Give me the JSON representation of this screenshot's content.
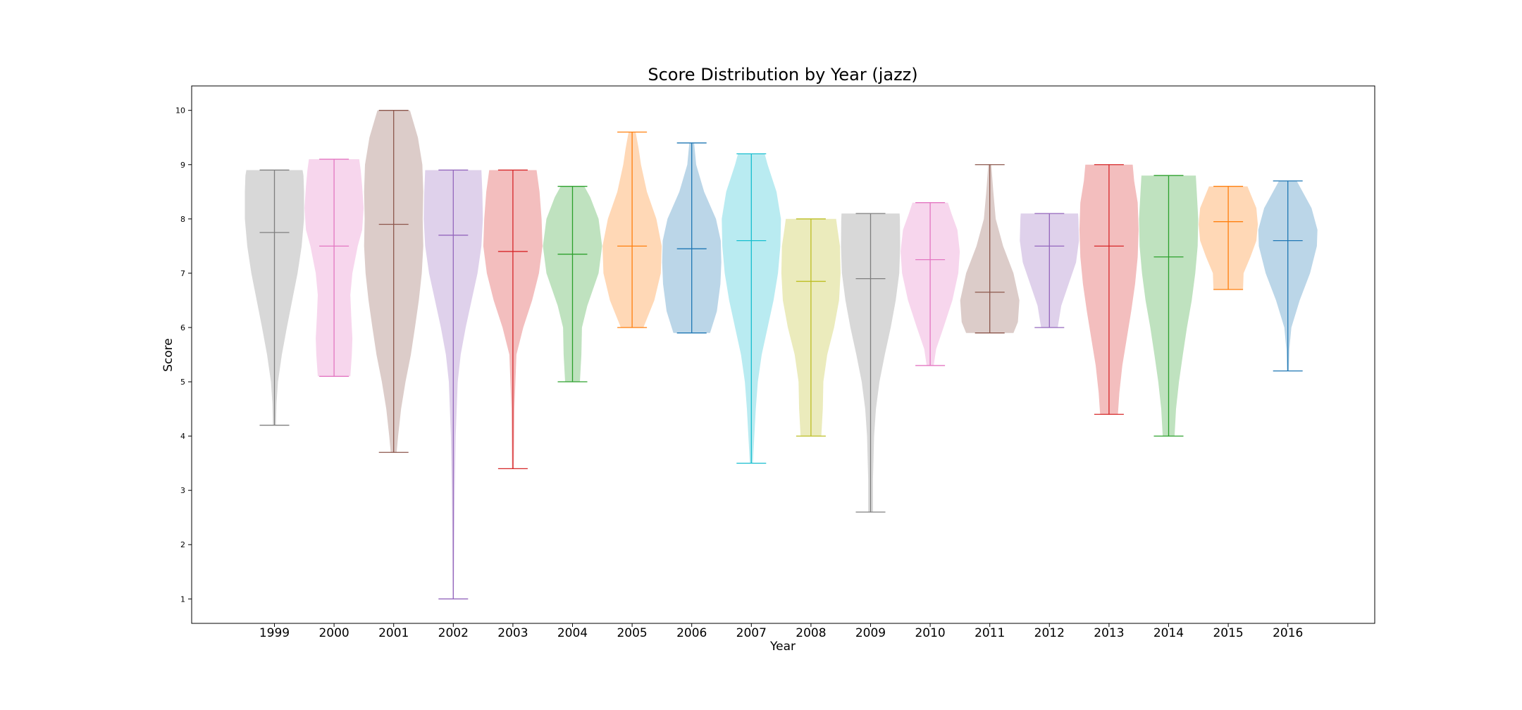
{
  "chart_data": {
    "type": "violin",
    "title": "Score Distribution by Year (jazz)",
    "xlabel": "Year",
    "ylabel": "Score",
    "ylim": [
      0.55,
      10.45
    ],
    "yticks": [
      "1",
      "2",
      "3",
      "4",
      "5",
      "6",
      "7",
      "8",
      "9",
      "10"
    ],
    "grid": false,
    "legend": "none",
    "categories": [
      "1999",
      "2000",
      "2001",
      "2002",
      "2003",
      "2004",
      "2005",
      "2006",
      "2007",
      "2008",
      "2009",
      "2010",
      "2011",
      "2012",
      "2013",
      "2014",
      "2015",
      "2016"
    ],
    "series": [
      {
        "year": "1999",
        "color": "#7f7f7f",
        "min": 4.2,
        "max": 8.9,
        "median": 7.75,
        "shape": [
          [
            4.2,
            0.05
          ],
          [
            4.6,
            0.07
          ],
          [
            5.0,
            0.12
          ],
          [
            5.5,
            0.25
          ],
          [
            6.0,
            0.42
          ],
          [
            6.5,
            0.6
          ],
          [
            7.0,
            0.78
          ],
          [
            7.5,
            0.92
          ],
          [
            8.0,
            1.0
          ],
          [
            8.5,
            1.0
          ],
          [
            8.8,
            0.98
          ],
          [
            8.9,
            0.95
          ]
        ]
      },
      {
        "year": "2000",
        "color": "#e377c2",
        "min": 5.1,
        "max": 9.1,
        "median": 7.5,
        "shape": [
          [
            5.1,
            0.55
          ],
          [
            5.5,
            0.6
          ],
          [
            5.8,
            0.62
          ],
          [
            6.2,
            0.58
          ],
          [
            6.6,
            0.55
          ],
          [
            7.0,
            0.62
          ],
          [
            7.5,
            0.8
          ],
          [
            7.8,
            0.95
          ],
          [
            8.2,
            1.0
          ],
          [
            8.6,
            0.95
          ],
          [
            8.9,
            0.9
          ],
          [
            9.1,
            0.85
          ]
        ]
      },
      {
        "year": "2001",
        "color": "#8c564b",
        "min": 3.7,
        "max": 10.0,
        "median": 7.9,
        "shape": [
          [
            3.7,
            0.1
          ],
          [
            4.0,
            0.15
          ],
          [
            4.5,
            0.25
          ],
          [
            5.0,
            0.4
          ],
          [
            5.5,
            0.58
          ],
          [
            6.0,
            0.72
          ],
          [
            6.5,
            0.85
          ],
          [
            7.0,
            0.95
          ],
          [
            7.5,
            1.0
          ],
          [
            8.0,
            0.98
          ],
          [
            8.5,
            1.0
          ],
          [
            9.0,
            0.97
          ],
          [
            9.5,
            0.82
          ],
          [
            10.0,
            0.55
          ]
        ]
      },
      {
        "year": "2002",
        "color": "#9467bd",
        "min": 1.0,
        "max": 8.9,
        "median": 7.7,
        "shape": [
          [
            1.0,
            0.02
          ],
          [
            2.0,
            0.03
          ],
          [
            3.0,
            0.05
          ],
          [
            4.0,
            0.08
          ],
          [
            5.0,
            0.15
          ],
          [
            5.5,
            0.25
          ],
          [
            6.0,
            0.42
          ],
          [
            6.5,
            0.62
          ],
          [
            7.0,
            0.82
          ],
          [
            7.5,
            0.95
          ],
          [
            8.0,
            1.0
          ],
          [
            8.5,
            0.98
          ],
          [
            8.9,
            0.95
          ]
        ]
      },
      {
        "year": "2003",
        "color": "#d62728",
        "min": 3.4,
        "max": 8.9,
        "median": 7.4,
        "shape": [
          [
            3.4,
            0.03
          ],
          [
            4.5,
            0.05
          ],
          [
            5.5,
            0.12
          ],
          [
            6.0,
            0.35
          ],
          [
            6.5,
            0.65
          ],
          [
            7.0,
            0.88
          ],
          [
            7.5,
            1.0
          ],
          [
            8.0,
            0.97
          ],
          [
            8.5,
            0.9
          ],
          [
            8.9,
            0.8
          ]
        ]
      },
      {
        "year": "2004",
        "color": "#2ca02c",
        "min": 5.0,
        "max": 8.6,
        "median": 7.35,
        "shape": [
          [
            5.0,
            0.25
          ],
          [
            5.5,
            0.3
          ],
          [
            6.0,
            0.32
          ],
          [
            6.4,
            0.5
          ],
          [
            7.0,
            0.88
          ],
          [
            7.5,
            1.0
          ],
          [
            8.0,
            0.88
          ],
          [
            8.4,
            0.6
          ],
          [
            8.6,
            0.4
          ]
        ]
      },
      {
        "year": "2005",
        "color": "#ff7f0e",
        "min": 6.0,
        "max": 9.6,
        "median": 7.5,
        "shape": [
          [
            6.0,
            0.38
          ],
          [
            6.5,
            0.75
          ],
          [
            7.0,
            0.97
          ],
          [
            7.5,
            1.0
          ],
          [
            8.0,
            0.82
          ],
          [
            8.5,
            0.5
          ],
          [
            9.0,
            0.3
          ],
          [
            9.3,
            0.22
          ],
          [
            9.6,
            0.12
          ]
        ]
      },
      {
        "year": "2006",
        "color": "#1f77b4",
        "min": 5.9,
        "max": 9.4,
        "median": 7.45,
        "shape": [
          [
            5.9,
            0.62
          ],
          [
            6.3,
            0.85
          ],
          [
            6.8,
            0.97
          ],
          [
            7.2,
            1.0
          ],
          [
            7.6,
            0.98
          ],
          [
            8.0,
            0.82
          ],
          [
            8.5,
            0.42
          ],
          [
            9.0,
            0.15
          ],
          [
            9.4,
            0.08
          ]
        ]
      },
      {
        "year": "2007",
        "color": "#17becf",
        "min": 3.5,
        "max": 9.2,
        "median": 7.6,
        "shape": [
          [
            3.5,
            0.05
          ],
          [
            4.0,
            0.1
          ],
          [
            4.5,
            0.15
          ],
          [
            5.0,
            0.22
          ],
          [
            5.5,
            0.35
          ],
          [
            6.0,
            0.55
          ],
          [
            6.5,
            0.75
          ],
          [
            7.0,
            0.9
          ],
          [
            7.5,
            0.98
          ],
          [
            8.0,
            1.0
          ],
          [
            8.5,
            0.85
          ],
          [
            9.0,
            0.55
          ],
          [
            9.2,
            0.45
          ]
        ]
      },
      {
        "year": "2008",
        "color": "#bcbd22",
        "min": 4.0,
        "max": 8.0,
        "median": 6.85,
        "shape": [
          [
            4.0,
            0.35
          ],
          [
            4.5,
            0.4
          ],
          [
            5.0,
            0.42
          ],
          [
            5.5,
            0.55
          ],
          [
            6.0,
            0.78
          ],
          [
            6.5,
            0.95
          ],
          [
            7.0,
            1.0
          ],
          [
            7.5,
            0.98
          ],
          [
            7.8,
            0.9
          ],
          [
            8.0,
            0.85
          ]
        ]
      },
      {
        "year": "2009",
        "color": "#7f7f7f",
        "min": 2.6,
        "max": 8.1,
        "median": 6.9,
        "shape": [
          [
            2.6,
            0.08
          ],
          [
            3.2,
            0.08
          ],
          [
            4.0,
            0.12
          ],
          [
            4.5,
            0.18
          ],
          [
            5.0,
            0.3
          ],
          [
            5.5,
            0.48
          ],
          [
            6.0,
            0.68
          ],
          [
            6.5,
            0.85
          ],
          [
            7.0,
            0.97
          ],
          [
            7.5,
            1.0
          ],
          [
            8.0,
            0.99
          ],
          [
            8.1,
            0.98
          ]
        ]
      },
      {
        "year": "2010",
        "color": "#e377c2",
        "min": 5.3,
        "max": 8.3,
        "median": 7.25,
        "shape": [
          [
            5.3,
            0.12
          ],
          [
            5.6,
            0.2
          ],
          [
            6.0,
            0.45
          ],
          [
            6.5,
            0.75
          ],
          [
            7.0,
            0.95
          ],
          [
            7.4,
            1.0
          ],
          [
            7.8,
            0.92
          ],
          [
            8.1,
            0.72
          ],
          [
            8.3,
            0.6
          ]
        ]
      },
      {
        "year": "2011",
        "color": "#8c564b",
        "min": 5.9,
        "max": 9.0,
        "median": 6.65,
        "shape": [
          [
            5.9,
            0.8
          ],
          [
            6.1,
            0.95
          ],
          [
            6.5,
            1.0
          ],
          [
            7.0,
            0.8
          ],
          [
            7.5,
            0.45
          ],
          [
            8.0,
            0.2
          ],
          [
            8.5,
            0.12
          ],
          [
            9.0,
            0.05
          ]
        ]
      },
      {
        "year": "2012",
        "color": "#9467bd",
        "min": 6.0,
        "max": 8.1,
        "median": 7.5,
        "shape": [
          [
            6.0,
            0.28
          ],
          [
            6.4,
            0.4
          ],
          [
            6.8,
            0.65
          ],
          [
            7.2,
            0.9
          ],
          [
            7.6,
            1.0
          ],
          [
            8.0,
            0.98
          ],
          [
            8.1,
            0.97
          ]
        ]
      },
      {
        "year": "2013",
        "color": "#d62728",
        "min": 4.4,
        "max": 9.0,
        "median": 7.5,
        "shape": [
          [
            4.4,
            0.3
          ],
          [
            4.8,
            0.35
          ],
          [
            5.3,
            0.45
          ],
          [
            5.8,
            0.6
          ],
          [
            6.3,
            0.75
          ],
          [
            6.8,
            0.88
          ],
          [
            7.3,
            0.97
          ],
          [
            7.8,
            1.0
          ],
          [
            8.3,
            0.97
          ],
          [
            8.7,
            0.85
          ],
          [
            9.0,
            0.8
          ]
        ]
      },
      {
        "year": "2014",
        "color": "#2ca02c",
        "min": 4.0,
        "max": 8.8,
        "median": 7.3,
        "shape": [
          [
            4.0,
            0.2
          ],
          [
            4.5,
            0.25
          ],
          [
            5.0,
            0.35
          ],
          [
            5.5,
            0.48
          ],
          [
            6.0,
            0.62
          ],
          [
            6.5,
            0.78
          ],
          [
            7.0,
            0.9
          ],
          [
            7.5,
            0.98
          ],
          [
            8.0,
            1.0
          ],
          [
            8.5,
            0.95
          ],
          [
            8.8,
            0.92
          ]
        ]
      },
      {
        "year": "2015",
        "color": "#ff7f0e",
        "min": 6.7,
        "max": 8.6,
        "median": 7.95,
        "shape": [
          [
            6.7,
            0.5
          ],
          [
            7.0,
            0.52
          ],
          [
            7.3,
            0.75
          ],
          [
            7.6,
            0.95
          ],
          [
            7.9,
            1.0
          ],
          [
            8.2,
            0.95
          ],
          [
            8.4,
            0.8
          ],
          [
            8.6,
            0.65
          ]
        ]
      },
      {
        "year": "2016",
        "color": "#1f77b4",
        "min": 5.2,
        "max": 8.7,
        "median": 7.6,
        "shape": [
          [
            5.2,
            0.03
          ],
          [
            5.6,
            0.05
          ],
          [
            6.0,
            0.12
          ],
          [
            6.5,
            0.4
          ],
          [
            7.0,
            0.75
          ],
          [
            7.5,
            0.98
          ],
          [
            7.8,
            1.0
          ],
          [
            8.2,
            0.8
          ],
          [
            8.5,
            0.5
          ],
          [
            8.7,
            0.3
          ]
        ]
      }
    ]
  }
}
